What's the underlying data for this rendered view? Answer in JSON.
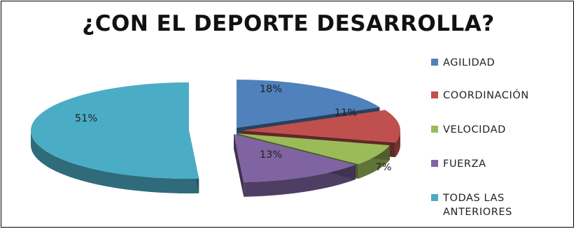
{
  "chart_data": {
    "type": "pie",
    "title": "¿CON EL DEPORTE DESARROLLA?",
    "categories": [
      "AGILIDAD",
      "COORDINACIÓN",
      "VELOCIDAD",
      "FUERZA",
      "TODAS LAS ANTERIORES"
    ],
    "values": [
      18,
      11,
      7,
      13,
      51
    ],
    "labels": [
      "18%",
      "11%",
      "7%",
      "13%",
      "51%"
    ],
    "colors": [
      "#4F81BD",
      "#C0504D",
      "#9BBB59",
      "#8064A2",
      "#4BACC6"
    ],
    "legend_position": "right",
    "style": "3d-exploded"
  }
}
